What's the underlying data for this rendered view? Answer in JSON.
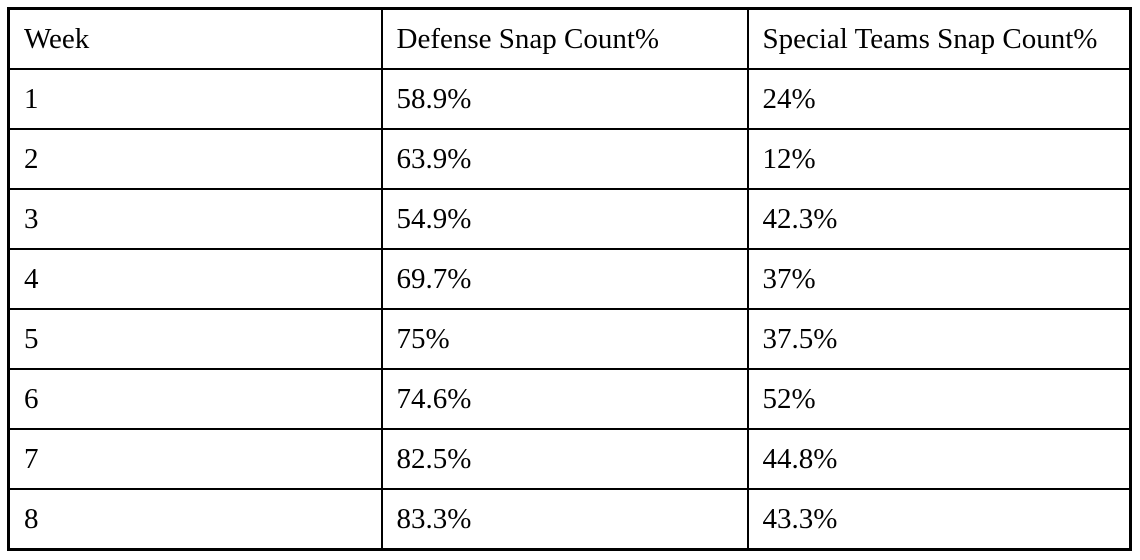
{
  "table": {
    "columns": [
      "Week",
      "Defense Snap Count%",
      "Special Teams Snap Count%"
    ],
    "rows": [
      [
        "1",
        "58.9%",
        "24%"
      ],
      [
        "2",
        "63.9%",
        "12%"
      ],
      [
        "3",
        "54.9%",
        "42.3%"
      ],
      [
        "4",
        "69.7%",
        "37%"
      ],
      [
        "5",
        "75%",
        "37.5%"
      ],
      [
        "6",
        "74.6%",
        "52%"
      ],
      [
        "7",
        "82.5%",
        "44.8%"
      ],
      [
        "8",
        "83.3%",
        "43.3%"
      ]
    ]
  },
  "colors": {
    "border": "#000000",
    "text": "#000000",
    "background": "#ffffff"
  },
  "chart_data": {
    "type": "table",
    "title": "",
    "categories": [
      "1",
      "2",
      "3",
      "4",
      "5",
      "6",
      "7",
      "8"
    ],
    "series": [
      {
        "name": "Defense Snap Count%",
        "values": [
          58.9,
          63.9,
          54.9,
          69.7,
          75,
          74.6,
          82.5,
          83.3
        ]
      },
      {
        "name": "Special Teams Snap Count%",
        "values": [
          24,
          12,
          42.3,
          37,
          37.5,
          52,
          44.8,
          43.3
        ]
      }
    ],
    "xlabel": "Week",
    "ylabel": "Snap Count %"
  }
}
